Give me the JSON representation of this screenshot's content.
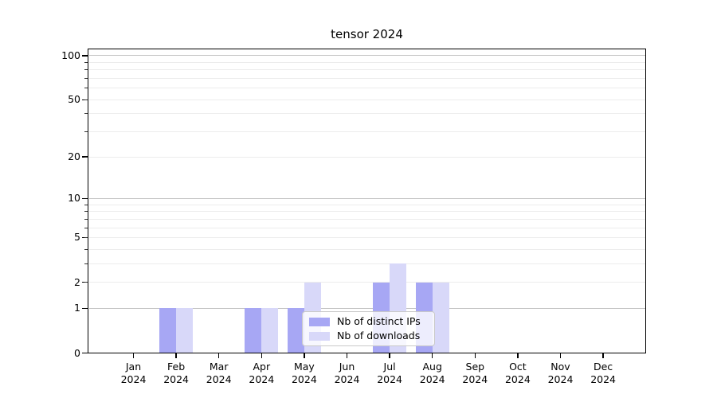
{
  "title": "tensor 2024",
  "colors": {
    "bar_distinct_ips": "#a7a7f4",
    "bar_downloads": "#d8d8f9",
    "grid_decade": "#c3c3c3",
    "grid_minor": "#ececec",
    "axis": "#000000",
    "legend_border": "#c9c9c9"
  },
  "chart_data": {
    "type": "bar",
    "title": "tensor 2024",
    "categories": [
      "Jan 2024",
      "Feb 2024",
      "Mar 2024",
      "Apr 2024",
      "May 2024",
      "Jun 2024",
      "Jul 2024",
      "Aug 2024",
      "Sep 2024",
      "Oct 2024",
      "Nov 2024",
      "Dec 2024"
    ],
    "months": [
      "Jan",
      "Feb",
      "Mar",
      "Apr",
      "May",
      "Jun",
      "Jul",
      "Aug",
      "Sep",
      "Oct",
      "Nov",
      "Dec"
    ],
    "year": "2024",
    "series": [
      {
        "name": "Nb of distinct IPs",
        "color": "#a7a7f4",
        "values": [
          0,
          1,
          0,
          1,
          1,
          0,
          2,
          2,
          0,
          0,
          0,
          0
        ]
      },
      {
        "name": "Nb of downloads",
        "color": "#d8d8f9",
        "values": [
          0,
          1,
          0,
          1,
          2,
          0,
          3,
          2,
          0,
          0,
          0,
          0
        ]
      }
    ],
    "xlabel": "",
    "ylabel": "",
    "yscale": "log1p",
    "ylim": [
      0,
      112
    ],
    "y_major_ticks": [
      0,
      1,
      2,
      5,
      10,
      20,
      50,
      100
    ],
    "grid": {
      "enabled": true,
      "decade_lines": [
        1,
        10,
        100
      ],
      "minor_lines": [
        2,
        3,
        4,
        5,
        6,
        7,
        8,
        9,
        20,
        30,
        40,
        50,
        60,
        70,
        80,
        90
      ]
    },
    "legend_position": "lower center, inside axes"
  }
}
